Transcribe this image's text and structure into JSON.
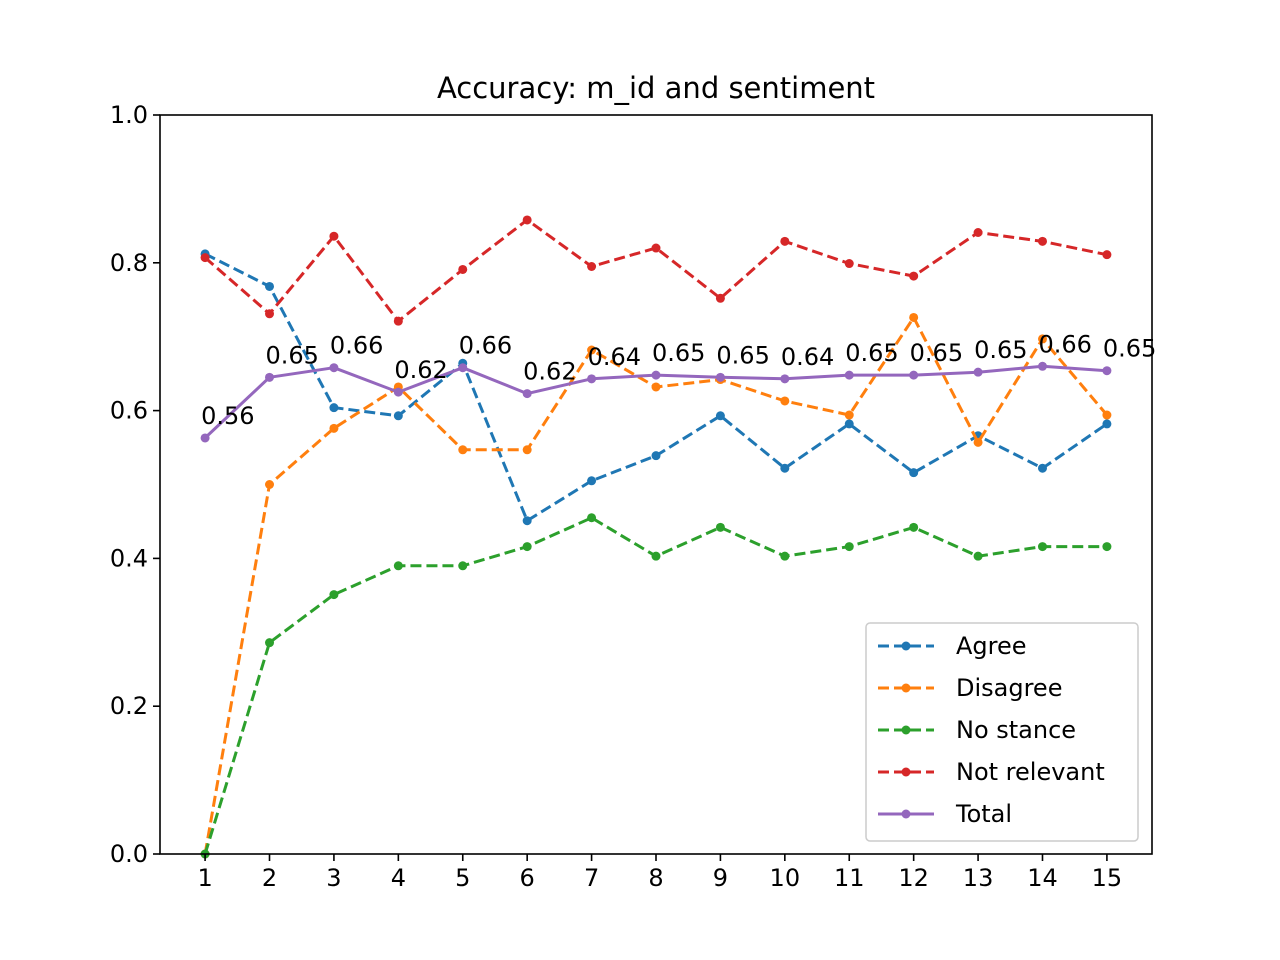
{
  "chart_data": {
    "type": "line",
    "title": "Accuracy: m_id and sentiment",
    "xlabel": "",
    "ylabel": "",
    "x": [
      1,
      2,
      3,
      4,
      5,
      6,
      7,
      8,
      9,
      10,
      11,
      12,
      13,
      14,
      15
    ],
    "xlim": [
      0.3,
      15.7
    ],
    "ylim": [
      0.0,
      1.0
    ],
    "yticks": [
      0.0,
      0.2,
      0.4,
      0.6,
      0.8,
      1.0
    ],
    "ytick_labels": [
      "0.0",
      "0.2",
      "0.4",
      "0.6",
      "0.8",
      "1.0"
    ],
    "grid": false,
    "legend_position": "lower right",
    "series": [
      {
        "name": "Agree",
        "color": "#1f77b4",
        "linestyle": "dashed",
        "marker": "dot",
        "values": [
          0.812,
          0.768,
          0.604,
          0.593,
          0.664,
          0.451,
          0.505,
          0.539,
          0.593,
          0.522,
          0.582,
          0.516,
          0.566,
          0.522,
          0.582
        ]
      },
      {
        "name": "Disagree",
        "color": "#ff7f0e",
        "linestyle": "dashed",
        "marker": "dot",
        "values": [
          0.0,
          0.5,
          0.576,
          0.632,
          0.547,
          0.547,
          0.682,
          0.632,
          0.642,
          0.613,
          0.594,
          0.726,
          0.557,
          0.697,
          0.594
        ]
      },
      {
        "name": "No stance",
        "color": "#2ca02c",
        "linestyle": "dashed",
        "marker": "dot",
        "values": [
          0.0,
          0.286,
          0.351,
          0.39,
          0.39,
          0.416,
          0.455,
          0.403,
          0.442,
          0.403,
          0.416,
          0.442,
          0.403,
          0.416,
          0.416
        ]
      },
      {
        "name": "Not relevant",
        "color": "#d62728",
        "linestyle": "dashed",
        "marker": "dot",
        "values": [
          0.807,
          0.731,
          0.836,
          0.721,
          0.791,
          0.858,
          0.795,
          0.82,
          0.752,
          0.829,
          0.799,
          0.782,
          0.841,
          0.829,
          0.811
        ]
      },
      {
        "name": "Total",
        "color": "#9467bd",
        "linestyle": "solid",
        "marker": "dot",
        "values": [
          0.563,
          0.645,
          0.658,
          0.625,
          0.658,
          0.623,
          0.643,
          0.648,
          0.645,
          0.643,
          0.648,
          0.648,
          0.652,
          0.66,
          0.654
        ]
      }
    ],
    "annotations": {
      "series": "Total",
      "labels": [
        "0.56",
        "0.65",
        "0.66",
        "0.62",
        "0.66",
        "0.62",
        "0.64",
        "0.65",
        "0.65",
        "0.64",
        "0.65",
        "0.65",
        "0.65",
        "0.66",
        "0.65"
      ]
    }
  }
}
